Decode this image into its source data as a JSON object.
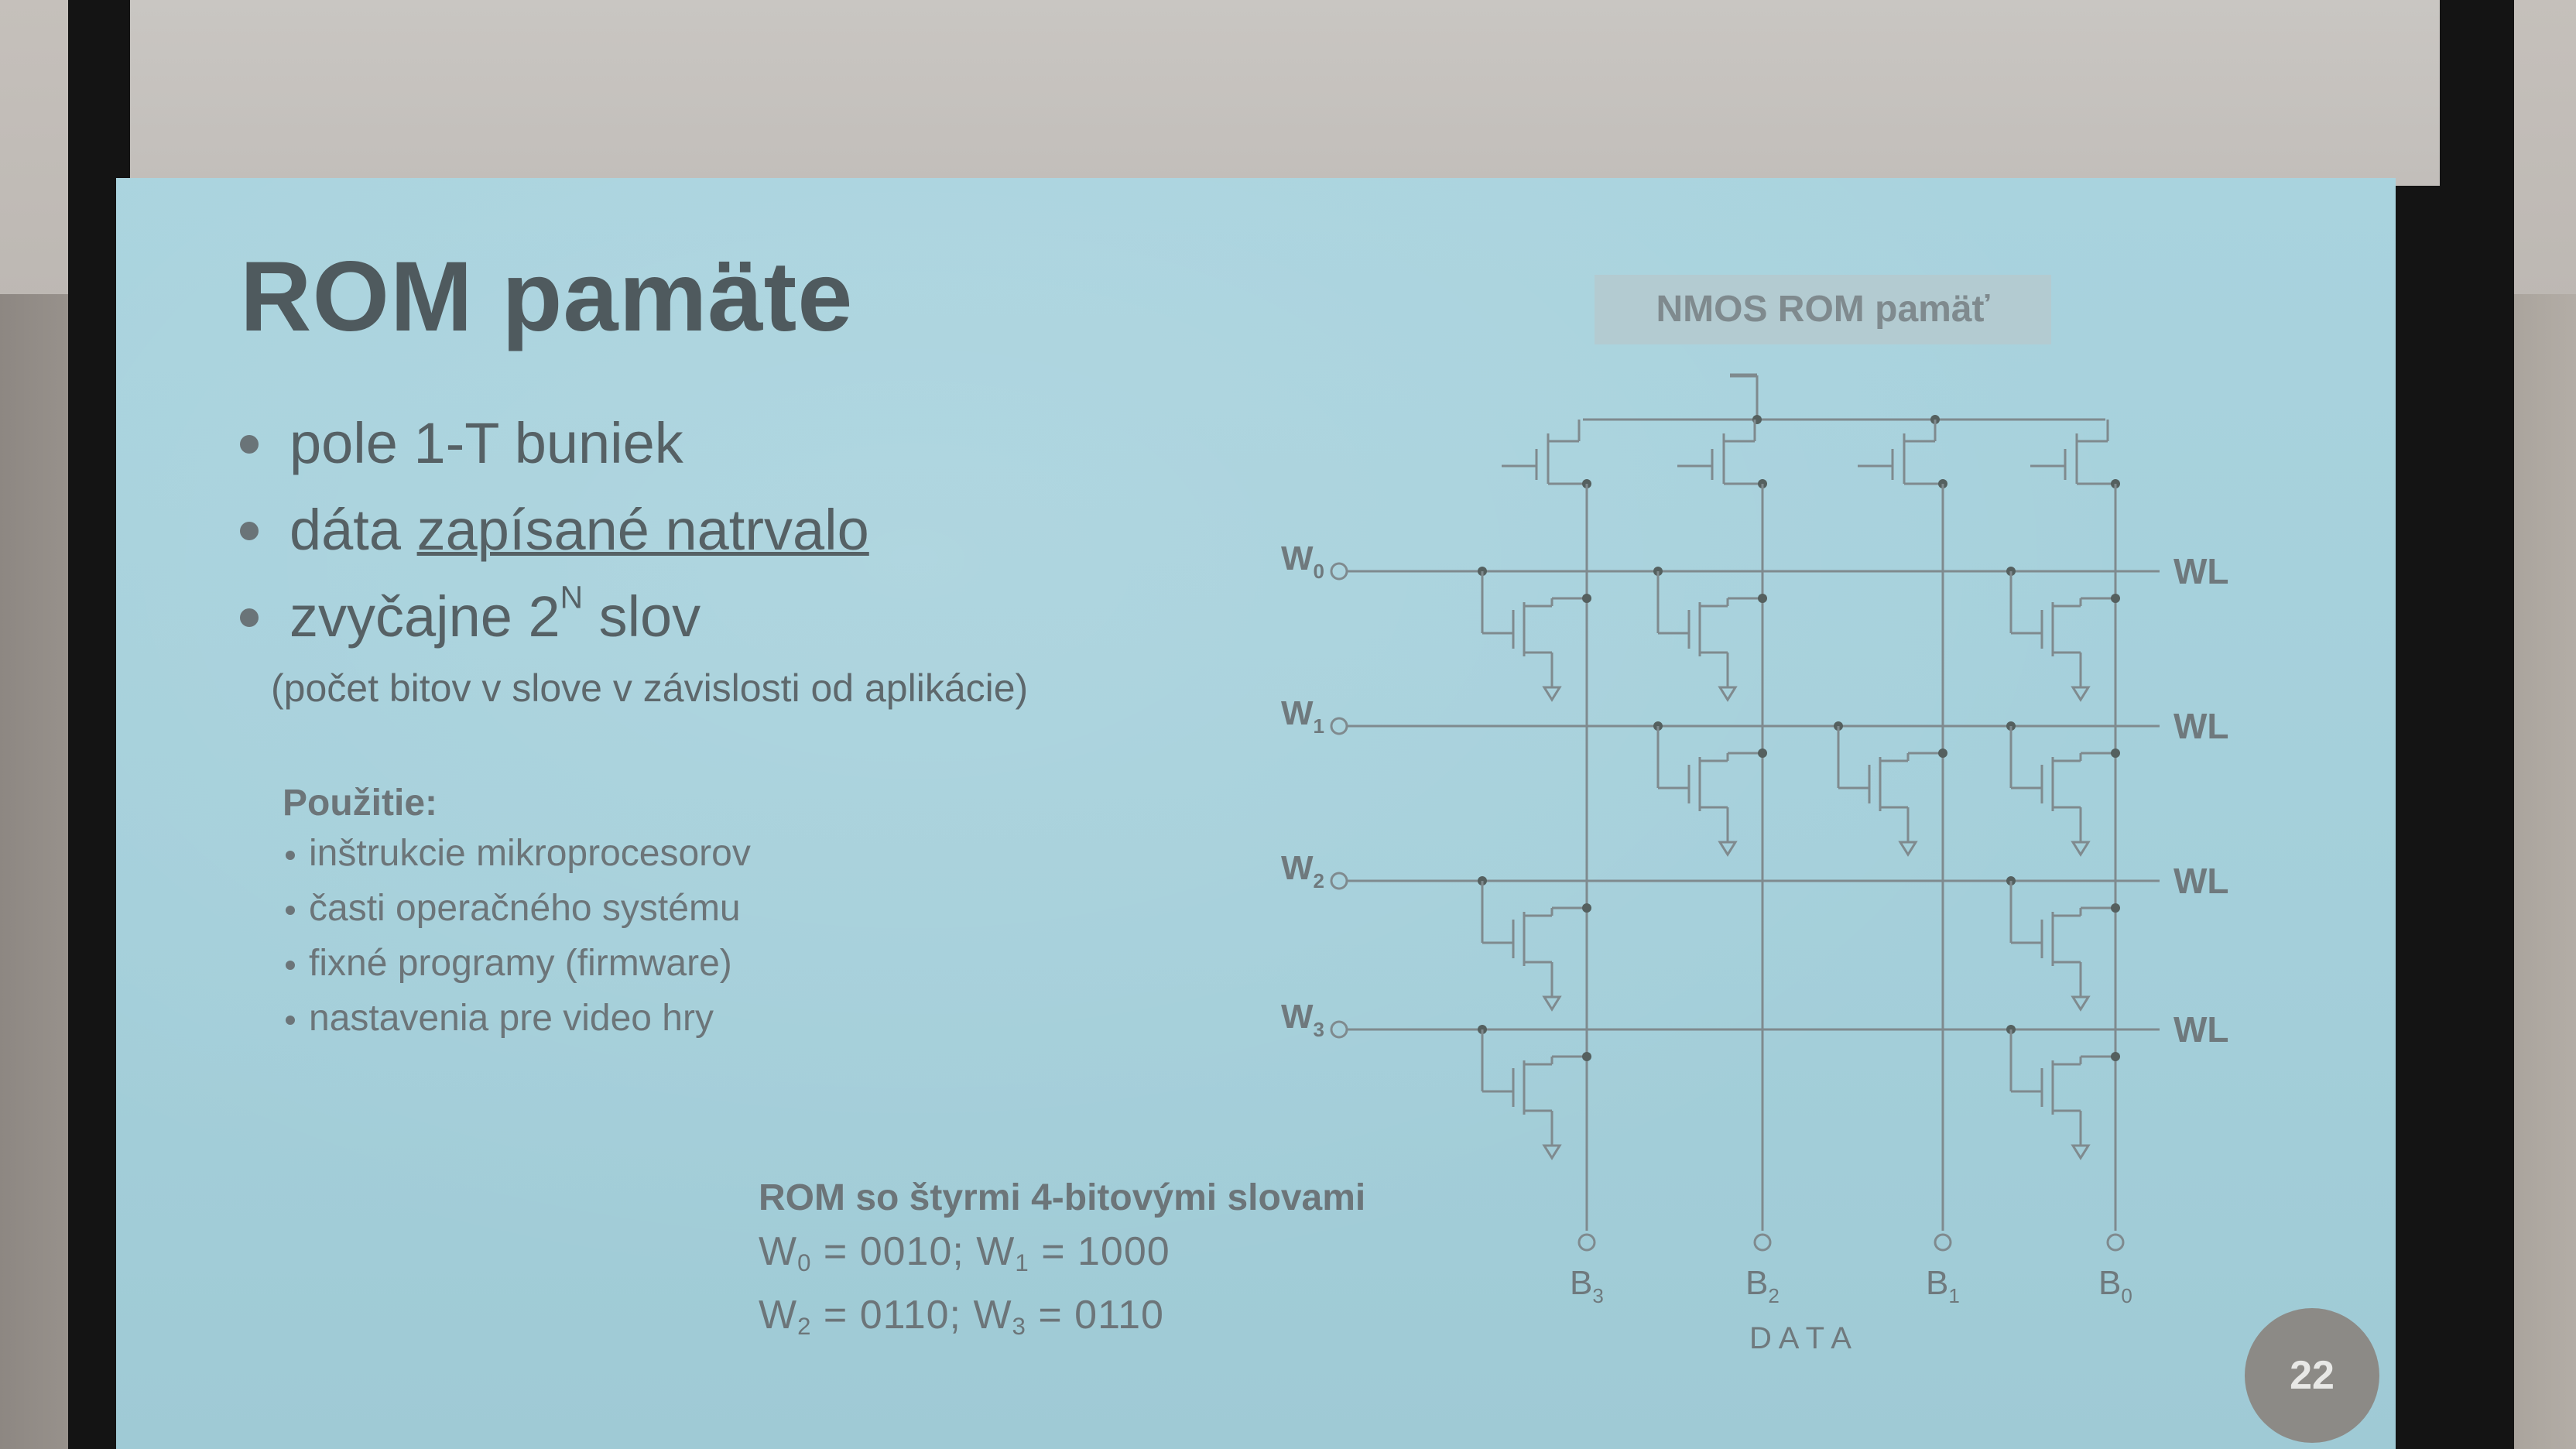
{
  "slide": {
    "title": "ROM pamäte",
    "bullets": [
      {
        "text": "pole 1-T buniek"
      },
      {
        "prefix": "dáta ",
        "underlined": "zapísané natrvalo"
      },
      {
        "prefix": "zvyčajne 2",
        "sup": "N",
        "suffix": " slov"
      }
    ],
    "note": "(počet bitov v slove v závislosti od aplikácie)",
    "usage": {
      "title": "Použitie:",
      "items": [
        "inštrukcie mikroprocesorov",
        "časti operačného systému",
        "fixné programy (firmware)",
        "nastavenia pre video hry"
      ]
    },
    "example": {
      "title": "ROM so štyrmi 4-bitovými slovami",
      "lines": [
        [
          {
            "w": "W",
            "i": "0",
            "v": " = 0010;  "
          },
          {
            "w": "W",
            "i": "1",
            "v": " = 1000"
          }
        ],
        [
          {
            "w": "W",
            "i": "2",
            "v": " = 0110;  "
          },
          {
            "w": "W",
            "i": "3",
            "v": " = 0110"
          }
        ]
      ]
    },
    "diagram": {
      "tag": "NMOS ROM pamäť",
      "word_lines": [
        {
          "name": "W",
          "index": "0",
          "label": "WL"
        },
        {
          "name": "W",
          "index": "1",
          "label": "WL"
        },
        {
          "name": "W",
          "index": "2",
          "label": "WL"
        },
        {
          "name": "W",
          "index": "3",
          "label": "WL"
        }
      ],
      "bit_lines": [
        {
          "name": "B",
          "index": "3"
        },
        {
          "name": "B",
          "index": "2"
        },
        {
          "name": "B",
          "index": "1"
        },
        {
          "name": "B",
          "index": "0"
        }
      ],
      "data_label": "DATA",
      "cells": [
        [
          1,
          1,
          0,
          1
        ],
        [
          0,
          1,
          1,
          1
        ],
        [
          1,
          0,
          0,
          1
        ],
        [
          1,
          0,
          0,
          1
        ]
      ]
    },
    "page_number": "22"
  }
}
